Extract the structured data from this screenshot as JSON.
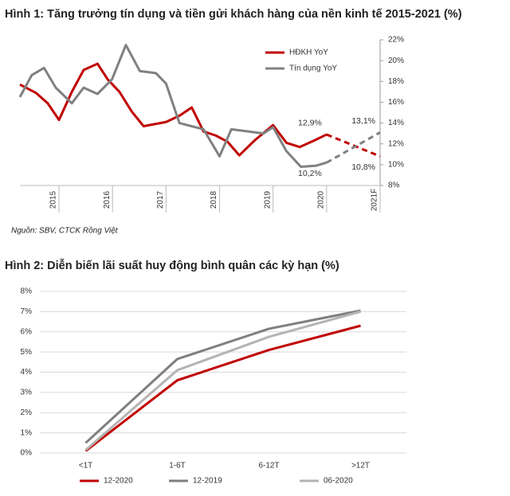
{
  "chart_data": [
    {
      "type": "line",
      "title": "Hình 1: Tăng trưởng tín dụng và tiền gửi khách hàng của nền kinh tế 2015-2021 (%)",
      "note": "Nguồn: SBV, CTCK Rồng Việt",
      "xlim": [
        2014.27,
        2021.0
      ],
      "xticks": [
        2015,
        2016,
        2017,
        2018,
        2019,
        2020,
        {
          "value": 2021,
          "label": "2021F"
        }
      ],
      "ylim": [
        8,
        22
      ],
      "yticks": [
        {
          "value": 8,
          "label": "8%"
        },
        {
          "value": 10,
          "label": "10%"
        },
        {
          "value": 12,
          "label": "12%"
        },
        {
          "value": 14,
          "label": "14%"
        },
        {
          "value": 16,
          "label": "16%"
        },
        {
          "value": 18,
          "label": "18%"
        },
        {
          "value": 20,
          "label": "20%"
        },
        {
          "value": 22,
          "label": "22%"
        }
      ],
      "y_axis_side": "right",
      "legend": "top-right",
      "forecast_x": 2020,
      "series": [
        {
          "name": "HĐKH YoY",
          "color": "#c00000",
          "x": [
            2014.27,
            2014.57,
            2014.79,
            2015.0,
            2015.24,
            2015.46,
            2015.72,
            2015.91,
            2016.13,
            2016.36,
            2016.58,
            2017.0,
            2017.25,
            2017.48,
            2017.7,
            2017.93,
            2018.15,
            2018.37,
            2018.67,
            2019.0,
            2019.25,
            2019.5,
            2019.8,
            2020.0,
            2021.0
          ],
          "values": [
            17.7,
            16.9,
            15.9,
            14.3,
            17.0,
            19.1,
            19.7,
            18.2,
            17.0,
            15.1,
            13.7,
            14.1,
            14.7,
            15.5,
            13.2,
            12.8,
            12.2,
            10.9,
            12.4,
            13.8,
            12.1,
            11.7,
            12.4,
            12.9,
            10.8
          ]
        },
        {
          "name": "Tín dụng YoY",
          "color": "#808080",
          "x": [
            2014.27,
            2014.49,
            2014.72,
            2014.94,
            2015.24,
            2015.46,
            2015.72,
            2015.99,
            2016.25,
            2016.51,
            2016.81,
            2017.0,
            2017.25,
            2017.7,
            2018.0,
            2018.22,
            2018.52,
            2018.82,
            2019.0,
            2019.25,
            2019.52,
            2019.8,
            2020.0,
            2021.0
          ],
          "values": [
            16.5,
            18.6,
            19.3,
            17.4,
            15.9,
            17.4,
            16.8,
            18.2,
            21.5,
            19.0,
            18.8,
            17.8,
            14.0,
            13.4,
            10.8,
            13.4,
            13.2,
            13.0,
            13.6,
            11.3,
            9.8,
            9.9,
            10.2,
            13.1
          ]
        }
      ],
      "annotations": [
        {
          "text": "12,9%",
          "x": 2020,
          "y": 12.9,
          "color": "#c00000",
          "position": "above"
        },
        {
          "text": "13,1%",
          "x": 2021,
          "y": 13.1,
          "color": "#808080",
          "position": "above"
        },
        {
          "text": "10,8%",
          "x": 2021,
          "y": 10.8,
          "color": "#c00000",
          "position": "below"
        },
        {
          "text": "10,2%",
          "x": 2020,
          "y": 10.2,
          "color": "#808080",
          "position": "below"
        }
      ]
    },
    {
      "type": "line",
      "title": "Hình 2: Diễn biến lãi suất huy động bình quân các kỳ hạn (%)",
      "categories": [
        "<1T",
        "1-6T",
        "6-12T",
        ">12T"
      ],
      "ylim": [
        0,
        8
      ],
      "yticks": [
        {
          "value": 0,
          "label": "0%"
        },
        {
          "value": 1,
          "label": "1%"
        },
        {
          "value": 2,
          "label": "2%"
        },
        {
          "value": 3,
          "label": "3%"
        },
        {
          "value": 4,
          "label": "4%"
        },
        {
          "value": 5,
          "label": "5%"
        },
        {
          "value": 6,
          "label": "6%"
        },
        {
          "value": 7,
          "label": "7%"
        },
        {
          "value": 8,
          "label": "8%"
        }
      ],
      "y_axis_side": "left",
      "grid": true,
      "legend": "bottom",
      "series": [
        {
          "name": "12-2020",
          "color": "#c00000",
          "values": [
            0.1,
            3.6,
            5.1,
            6.3
          ]
        },
        {
          "name": "12-2019",
          "color": "#7f7f7f",
          "values": [
            0.5,
            4.65,
            6.15,
            7.05
          ]
        },
        {
          "name": "06-2020",
          "color": "#b4b4b4",
          "values": [
            0.15,
            4.1,
            5.75,
            7.0
          ]
        }
      ]
    }
  ]
}
